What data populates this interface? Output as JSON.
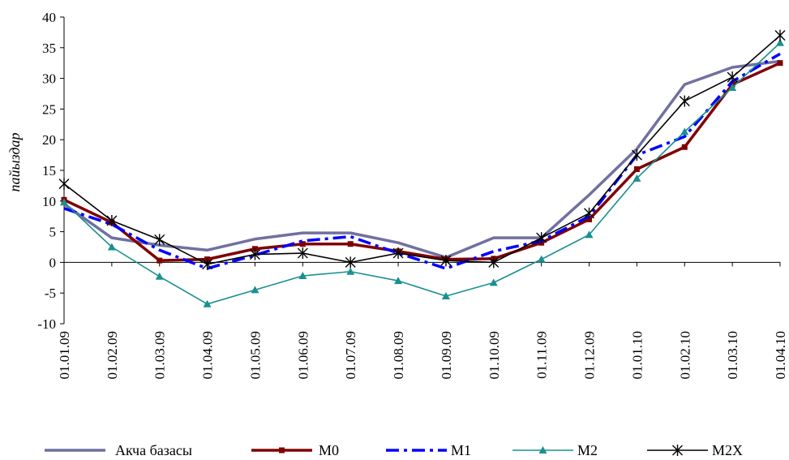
{
  "chart_data": {
    "type": "line",
    "ylabel": "пайыздар",
    "xlabel": "",
    "ylim": [
      -10,
      40
    ],
    "yticks": [
      -10,
      -5,
      0,
      5,
      10,
      15,
      20,
      25,
      30,
      35,
      40
    ],
    "categories": [
      "01.01.09",
      "01.02.09",
      "01.03.09",
      "01.04.09",
      "01.05.09",
      "01.06.09",
      "01.07.09",
      "01.08.09",
      "01.09.09",
      "01.10.09",
      "01.11.09",
      "01.12.09",
      "01.01.10",
      "01.02.10",
      "01.03.10",
      "01.04.10"
    ],
    "legend_position": "bottom",
    "series": [
      {
        "name": "Акча базасы",
        "color": "#7070a0",
        "style": "solid-thick",
        "marker": "none",
        "values": [
          9.5,
          4.0,
          2.8,
          2.0,
          3.8,
          4.8,
          4.8,
          3.2,
          0.8,
          4.0,
          4.0,
          11.0,
          18.5,
          29.0,
          31.8,
          32.8
        ]
      },
      {
        "name": "M0",
        "color": "#800000",
        "style": "solid-thick",
        "marker": "square",
        "values": [
          10.2,
          6.5,
          0.3,
          0.5,
          2.2,
          3.0,
          3.0,
          1.8,
          0.5,
          0.6,
          3.2,
          7.0,
          15.2,
          18.8,
          29.0,
          32.5
        ]
      },
      {
        "name": "M1",
        "color": "#0000ff",
        "style": "dash-dot",
        "marker": "none",
        "values": [
          8.8,
          6.2,
          2.0,
          -1.0,
          1.2,
          3.5,
          4.2,
          1.5,
          -1.0,
          1.8,
          3.5,
          7.5,
          17.5,
          20.5,
          29.5,
          34.0
        ]
      },
      {
        "name": "M2",
        "color": "#1a9090",
        "style": "solid-thin",
        "marker": "triangle",
        "values": [
          9.8,
          2.5,
          -2.3,
          -6.8,
          -4.5,
          -2.2,
          -1.5,
          -3.0,
          -5.5,
          -3.3,
          0.5,
          4.5,
          13.7,
          21.3,
          28.5,
          35.8
        ]
      },
      {
        "name": "M2X",
        "color": "#000000",
        "style": "solid-thin",
        "marker": "star",
        "values": [
          12.8,
          6.8,
          3.7,
          -0.3,
          1.3,
          1.5,
          0.0,
          1.5,
          0.3,
          0.0,
          4.0,
          8.0,
          17.5,
          26.3,
          30.2,
          37.0
        ]
      }
    ]
  }
}
